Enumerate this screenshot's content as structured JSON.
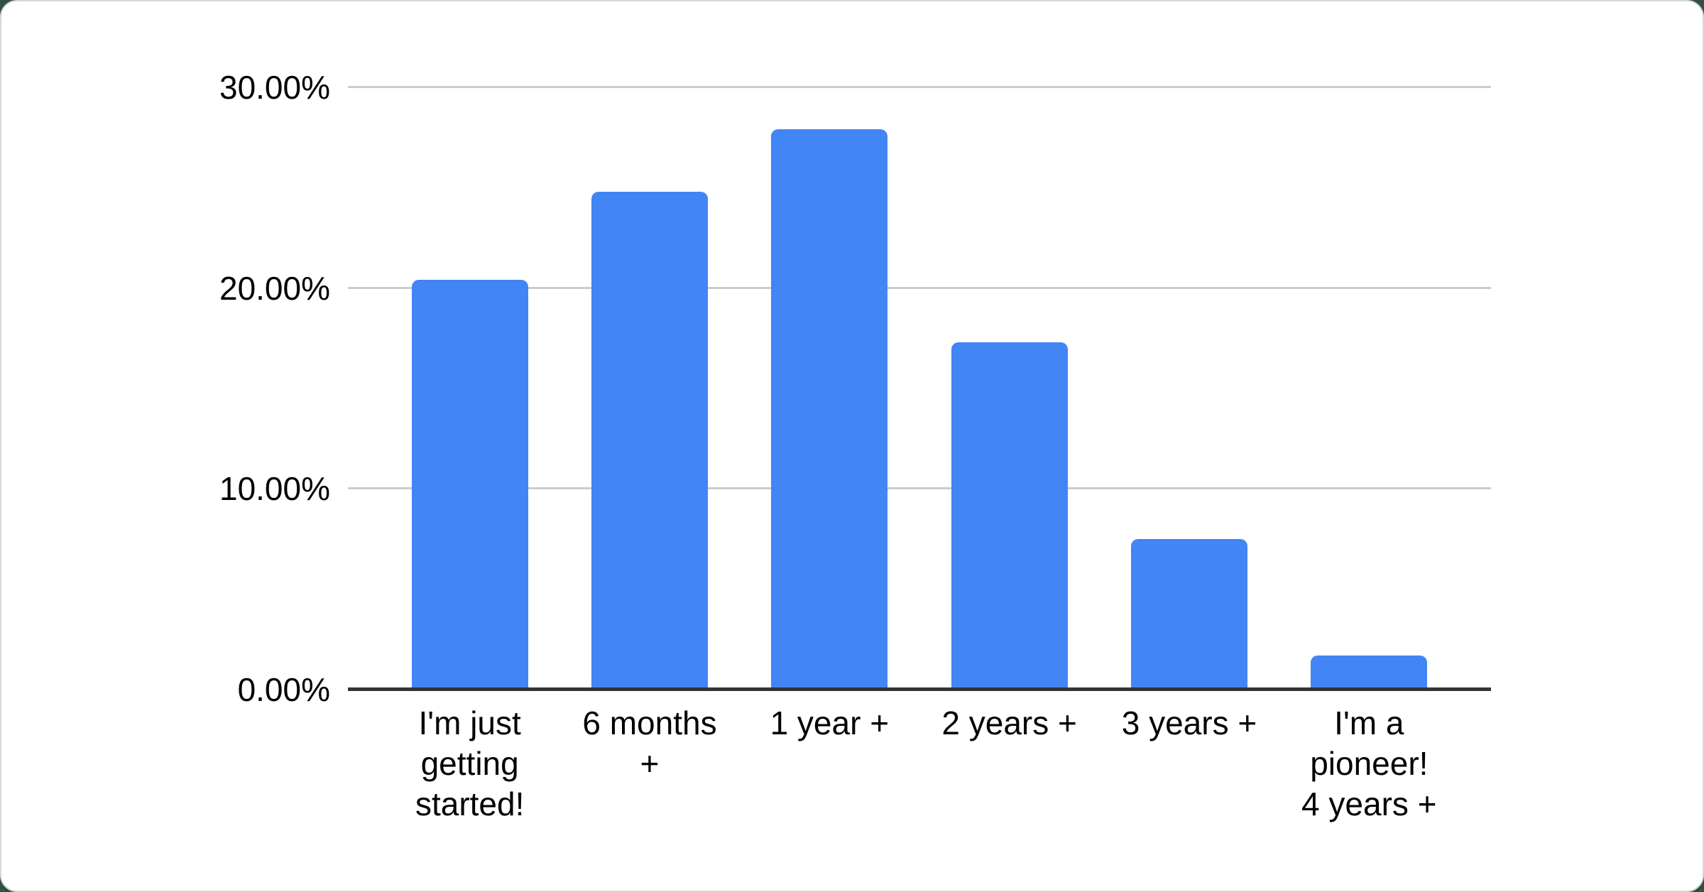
{
  "page": {
    "background_color": "#345243",
    "card_background": "#ffffff",
    "card_border_color": "#d3d9dd"
  },
  "chart_data": {
    "type": "bar",
    "title": "",
    "xlabel": "",
    "ylabel": "",
    "categories": [
      "I'm just getting started!",
      "6 months +",
      "1 year +",
      "2 years +",
      "3 years +",
      "I'm a pioneer! 4 years +"
    ],
    "category_label_lines": [
      [
        "I'm just",
        "getting",
        "started!"
      ],
      [
        "6 months",
        "+"
      ],
      [
        "1 year +"
      ],
      [
        "2 years +"
      ],
      [
        "3 years +"
      ],
      [
        "I'm a",
        "pioneer!",
        "4 years +"
      ]
    ],
    "values": [
      20.4,
      24.8,
      27.9,
      17.3,
      7.5,
      1.7
    ],
    "unit": "percent",
    "ylim": [
      0,
      30
    ],
    "yticks": [
      {
        "value": 0,
        "label": "0.00%"
      },
      {
        "value": 10,
        "label": "10.00%"
      },
      {
        "value": 20,
        "label": "20.00%"
      },
      {
        "value": 30,
        "label": "30.00%"
      }
    ],
    "grid": true,
    "legend": "none",
    "bar_color": "#4285f4",
    "gridline_color": "#cccccc",
    "baseline_color": "#333333",
    "label_color": "#000000"
  }
}
